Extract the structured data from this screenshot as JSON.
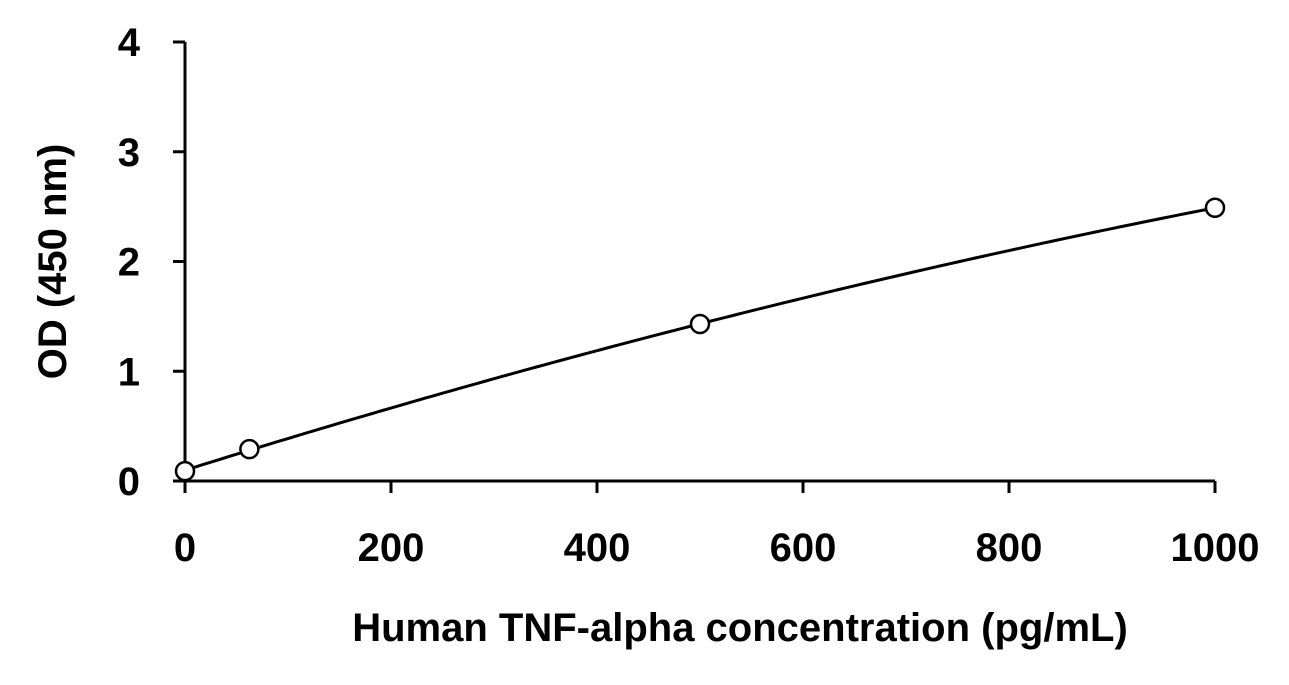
{
  "chart_data": {
    "type": "scatter",
    "title": "",
    "xlabel": "Human TNF-alpha concentration (pg/mL)",
    "ylabel": "OD (450 nm)",
    "xlim": [
      0,
      1000
    ],
    "ylim": [
      0,
      4
    ],
    "xticks": [
      0,
      200,
      400,
      600,
      800,
      1000
    ],
    "yticks": [
      0,
      1,
      2,
      3,
      4
    ],
    "grid": false,
    "legend": "none",
    "series": [
      {
        "marker": "open-circle",
        "line": "fitted-curve",
        "x": [
          0,
          62.5,
          500,
          1000
        ],
        "y": [
          0.09,
          0.29,
          1.43,
          2.49
        ]
      }
    ]
  }
}
